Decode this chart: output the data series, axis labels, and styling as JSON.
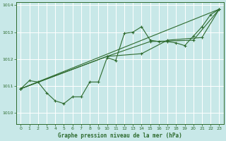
{
  "background_color": "#c8e8e8",
  "grid_color": "#ffffff",
  "line_color": "#2d6a2d",
  "xlabel": "Graphe pression niveau de la mer (hPa)",
  "xlim": [
    -0.5,
    23.5
  ],
  "ylim": [
    1009.6,
    1014.1
  ],
  "yticks": [
    1010,
    1011,
    1012,
    1013,
    1014
  ],
  "xticks": [
    0,
    1,
    2,
    3,
    4,
    5,
    6,
    7,
    8,
    9,
    10,
    11,
    12,
    13,
    14,
    15,
    16,
    17,
    18,
    19,
    20,
    21,
    22,
    23
  ],
  "series1": [
    [
      0,
      1010.9
    ],
    [
      1,
      1011.2
    ],
    [
      2,
      1011.15
    ],
    [
      3,
      1010.75
    ],
    [
      4,
      1010.45
    ],
    [
      5,
      1010.35
    ],
    [
      6,
      1010.6
    ],
    [
      7,
      1010.6
    ],
    [
      8,
      1011.15
    ],
    [
      9,
      1011.15
    ],
    [
      10,
      1012.05
    ],
    [
      11,
      1011.95
    ],
    [
      12,
      1012.95
    ],
    [
      13,
      1013.0
    ],
    [
      14,
      1013.2
    ],
    [
      15,
      1012.7
    ],
    [
      16,
      1012.65
    ],
    [
      17,
      1012.65
    ],
    [
      18,
      1012.6
    ],
    [
      19,
      1012.5
    ],
    [
      20,
      1012.85
    ],
    [
      21,
      1013.2
    ],
    [
      22,
      1013.65
    ],
    [
      23,
      1013.85
    ]
  ],
  "trend_line": [
    [
      0,
      1010.9
    ],
    [
      23,
      1013.85
    ]
  ],
  "series2": [
    [
      0,
      1010.9
    ],
    [
      10,
      1012.1
    ],
    [
      15,
      1012.65
    ],
    [
      20,
      1012.7
    ],
    [
      23,
      1013.85
    ]
  ],
  "series3": [
    [
      0,
      1010.9
    ],
    [
      10,
      1012.1
    ],
    [
      14,
      1012.2
    ],
    [
      17,
      1012.7
    ],
    [
      21,
      1012.8
    ],
    [
      23,
      1013.85
    ]
  ]
}
